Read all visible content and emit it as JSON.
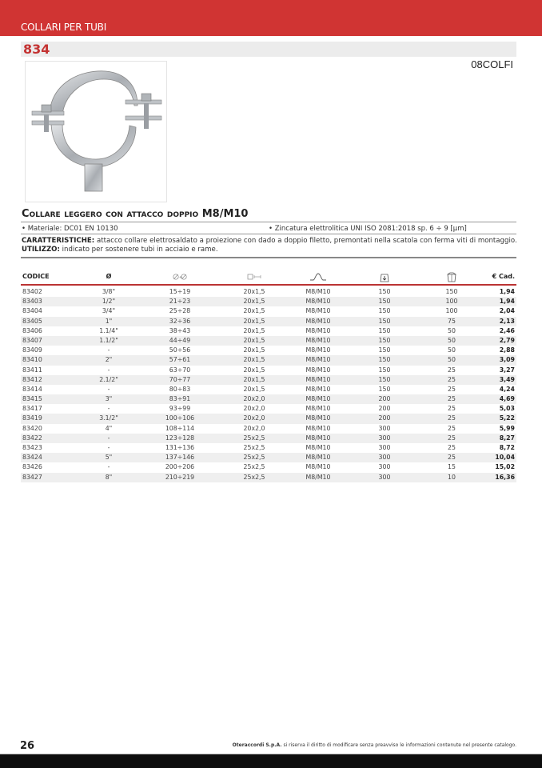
{
  "header": {
    "section": "COLLARI PER TUBI",
    "product_code": "834",
    "family_code": "08COLFI",
    "accent": "#d03433"
  },
  "product": {
    "title_prefix": "Collare leggero con attacco doppio",
    "title_suffix": "M8/M10",
    "material": "• Materiale: DC01 EN 10130",
    "finish": "• Zincatura elettrolitica UNI ISO 2081:2018 sp. 6 ÷ 9 [µm]",
    "characteristics_label": "CARATTERISTICHE:",
    "characteristics": " attacco collare elettrosaldato a proiezione con dado a doppio filetto, premontati nella scatola con ferma viti di montaggio.",
    "usage_label": "UTILIZZO:",
    "usage": " indicato per sostenere tubi in acciaio e rame."
  },
  "table": {
    "headers": [
      "CODICE",
      "Ø",
      "range-diameter-icon",
      "band-size-icon",
      "thread-icon",
      "box-quantity-icon",
      "package-icon",
      "€ Cad."
    ],
    "rows": [
      [
        "83402",
        "3/8\"",
        "15÷19",
        "20x1,5",
        "M8/M10",
        "150",
        "150",
        "1,94"
      ],
      [
        "83403",
        "1/2\"",
        "21÷23",
        "20x1,5",
        "M8/M10",
        "150",
        "100",
        "1,94"
      ],
      [
        "83404",
        "3/4\"",
        "25÷28",
        "20x1,5",
        "M8/M10",
        "150",
        "100",
        "2,04"
      ],
      [
        "83405",
        "1\"",
        "32÷36",
        "20x1,5",
        "M8/M10",
        "150",
        "75",
        "2,13"
      ],
      [
        "83406",
        "1.1/4\"",
        "38÷43",
        "20x1,5",
        "M8/M10",
        "150",
        "50",
        "2,46"
      ],
      [
        "83407",
        "1.1/2\"",
        "44÷49",
        "20x1,5",
        "M8/M10",
        "150",
        "50",
        "2,79"
      ],
      [
        "83409",
        "-",
        "50÷56",
        "20x1,5",
        "M8/M10",
        "150",
        "50",
        "2,88"
      ],
      [
        "83410",
        "2\"",
        "57÷61",
        "20x1,5",
        "M8/M10",
        "150",
        "50",
        "3,09"
      ],
      [
        "83411",
        "-",
        "63÷70",
        "20x1,5",
        "M8/M10",
        "150",
        "25",
        "3,27"
      ],
      [
        "83412",
        "2.1/2\"",
        "70÷77",
        "20x1,5",
        "M8/M10",
        "150",
        "25",
        "3,49"
      ],
      [
        "83414",
        "-",
        "80÷83",
        "20x1,5",
        "M8/M10",
        "150",
        "25",
        "4,24"
      ],
      [
        "83415",
        "3\"",
        "83÷91",
        "20x2,0",
        "M8/M10",
        "200",
        "25",
        "4,69"
      ],
      [
        "83417",
        "-",
        "93÷99",
        "20x2,0",
        "M8/M10",
        "200",
        "25",
        "5,03"
      ],
      [
        "83419",
        "3.1/2\"",
        "100÷106",
        "20x2,0",
        "M8/M10",
        "200",
        "25",
        "5,22"
      ],
      [
        "83420",
        "4\"",
        "108÷114",
        "20x2,0",
        "M8/M10",
        "300",
        "25",
        "5,99"
      ],
      [
        "83422",
        "-",
        "123÷128",
        "25x2,5",
        "M8/M10",
        "300",
        "25",
        "8,27"
      ],
      [
        "83423",
        "-",
        "131÷136",
        "25x2,5",
        "M8/M10",
        "300",
        "25",
        "8,72"
      ],
      [
        "83424",
        "5\"",
        "137÷146",
        "25x2,5",
        "M8/M10",
        "300",
        "25",
        "10,04"
      ],
      [
        "83426",
        "-",
        "200÷206",
        "25x2,5",
        "M8/M10",
        "300",
        "15",
        "15,02"
      ],
      [
        "83427",
        "8\"",
        "210÷219",
        "25x2,5",
        "M8/M10",
        "300",
        "10",
        "16,36"
      ]
    ]
  },
  "footer": {
    "page_number": "26",
    "company": "Oteraccordi S.p.A.",
    "disclaimer": " si riserva il diritto di modificare senza preavviso le informazioni contenute nel presente catalogo."
  }
}
